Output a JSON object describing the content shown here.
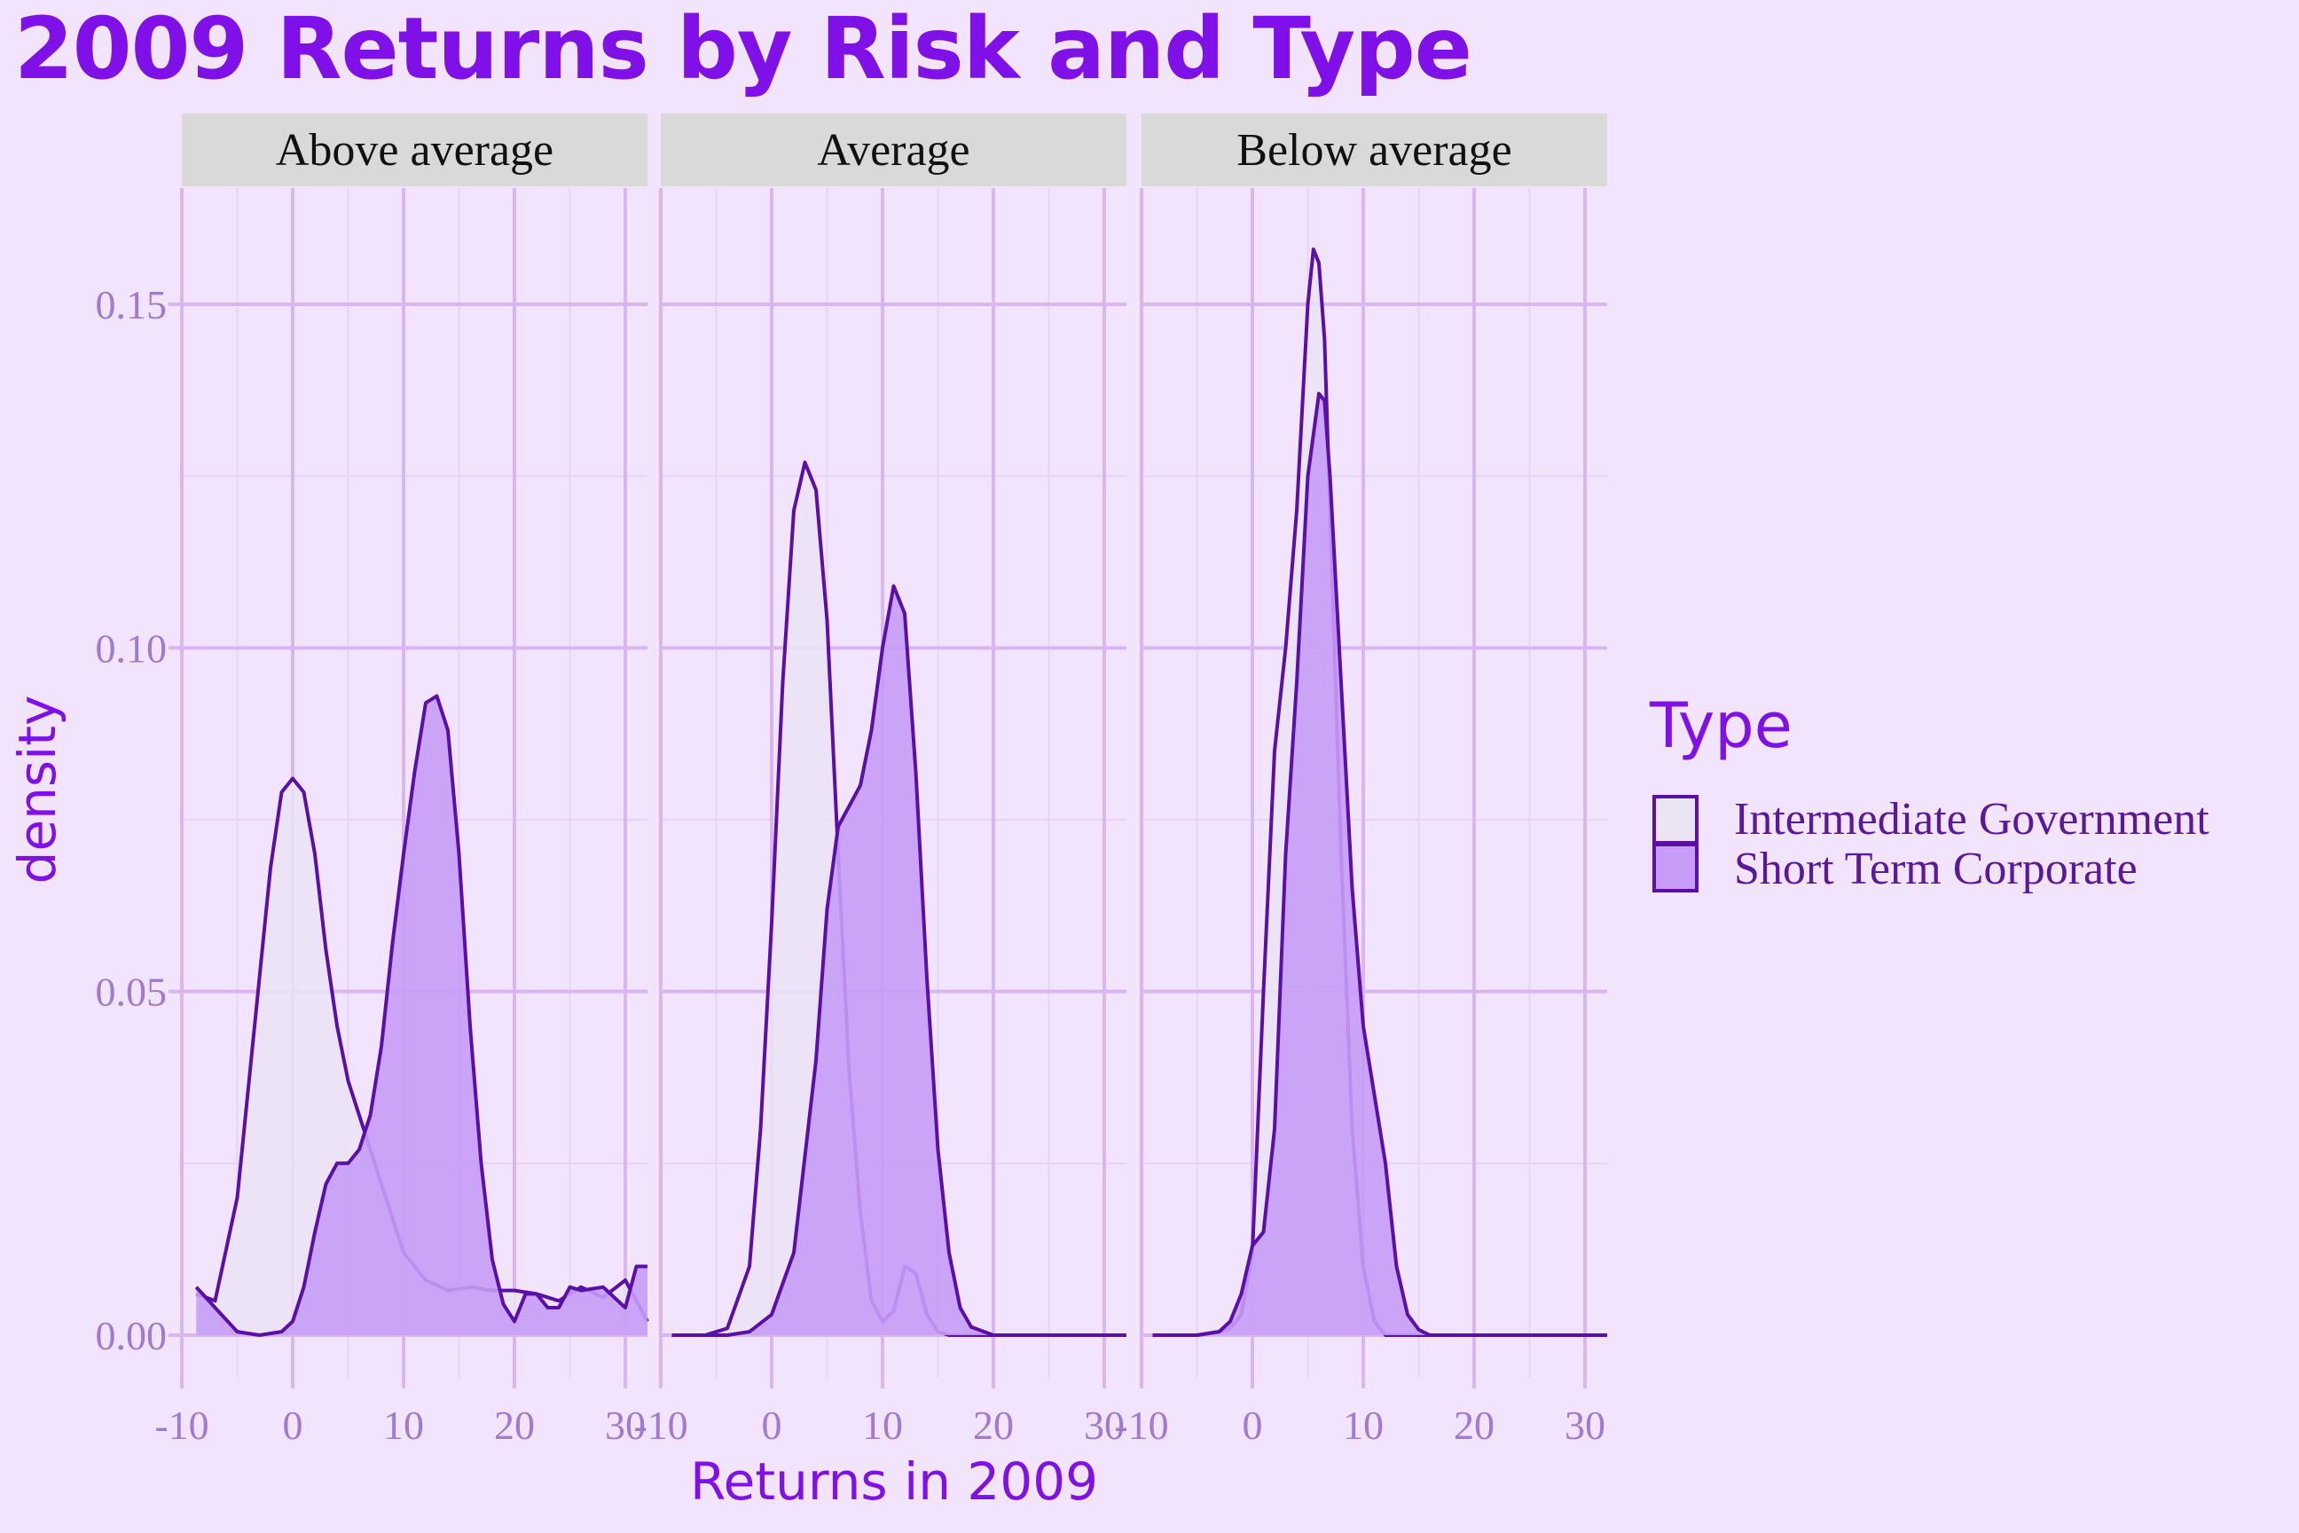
{
  "title": "2009 Returns by Risk and Type",
  "colors": {
    "background": "#f2e4fc",
    "grid_major": "#d8b6f2",
    "grid_minor": "#e7d2f8",
    "strip_background": "#d9d9d9",
    "line": "#5a0fa8",
    "fill_intermediate": "#ebe4f5",
    "fill_short_term": "#c79cf7",
    "title": "#7f10e8",
    "tick_text": "#a07ad0"
  },
  "chart_data": {
    "type": "area",
    "title": "2009 Returns by Risk and Type",
    "xlabel": "Returns in 2009",
    "ylabel": "density",
    "xlim": [
      -10,
      32
    ],
    "ylim": [
      0,
      0.165
    ],
    "x_ticks": [
      -10,
      0,
      10,
      20,
      30
    ],
    "x_tick_labels": [
      "-10",
      "0",
      "10",
      "20",
      "30"
    ],
    "y_ticks": [
      0,
      0.05,
      0.1,
      0.15
    ],
    "y_tick_labels": [
      "0.00",
      "0.05",
      "0.10",
      "0.15"
    ],
    "grid": true,
    "legend": {
      "title": "Type",
      "position": "right",
      "entries": [
        "Intermediate Government",
        "Short Term Corporate"
      ]
    },
    "panels": [
      {
        "label": "Above average",
        "series": [
          {
            "name": "Intermediate Government",
            "x": [
              -8.7,
              -7,
              -5,
              -3,
              -2,
              -1,
              0,
              1,
              2,
              3,
              4,
              5,
              6,
              8,
              10,
              12,
              14,
              16,
              18,
              20,
              22,
              24,
              26,
              28,
              30,
              32
            ],
            "y": [
              0.006,
              0.005,
              0.02,
              0.052,
              0.068,
              0.079,
              0.081,
              0.079,
              0.07,
              0.056,
              0.045,
              0.037,
              0.032,
              0.022,
              0.012,
              0.008,
              0.0065,
              0.007,
              0.0065,
              0.0065,
              0.006,
              0.005,
              0.007,
              0.0055,
              0.008,
              0.002
            ]
          },
          {
            "name": "Short Term Corporate",
            "x": [
              -8.7,
              -7,
              -5,
              -3,
              -1,
              0,
              1,
              2,
              3,
              4,
              5,
              6,
              7,
              8,
              9,
              10,
              11,
              12,
              13,
              14,
              15,
              16,
              17,
              18,
              19,
              20,
              21,
              22,
              23,
              24,
              25,
              26,
              28,
              30,
              31,
              32
            ],
            "y": [
              0.007,
              0.004,
              0.0005,
              0.0,
              0.0005,
              0.002,
              0.007,
              0.015,
              0.022,
              0.025,
              0.025,
              0.027,
              0.032,
              0.042,
              0.057,
              0.07,
              0.082,
              0.092,
              0.093,
              0.088,
              0.07,
              0.045,
              0.025,
              0.011,
              0.0045,
              0.002,
              0.006,
              0.006,
              0.004,
              0.004,
              0.007,
              0.0065,
              0.007,
              0.004,
              0.01,
              0.01
            ]
          }
        ]
      },
      {
        "label": "Average",
        "series": [
          {
            "name": "Intermediate Government",
            "x": [
              -9,
              -6,
              -4,
              -2,
              -1,
              0,
              1,
              2,
              3,
              4,
              5,
              6,
              7,
              8,
              9,
              10,
              11,
              12,
              13,
              14,
              15,
              16,
              20,
              30,
              32
            ],
            "y": [
              0.0,
              0.0,
              0.001,
              0.01,
              0.03,
              0.06,
              0.095,
              0.12,
              0.127,
              0.123,
              0.104,
              0.07,
              0.038,
              0.018,
              0.005,
              0.002,
              0.0035,
              0.01,
              0.009,
              0.003,
              0.0005,
              0.0,
              0.0,
              0.0,
              0.0
            ]
          },
          {
            "name": "Short Term Corporate",
            "x": [
              -9,
              -4,
              -2,
              0,
              2,
              4,
              5,
              6,
              7,
              8,
              9,
              10,
              11,
              12,
              13,
              14,
              15,
              16,
              17,
              18,
              20,
              30,
              32
            ],
            "y": [
              0.0,
              0.0,
              0.0005,
              0.003,
              0.012,
              0.04,
              0.062,
              0.074,
              0.077,
              0.08,
              0.088,
              0.1,
              0.109,
              0.105,
              0.082,
              0.052,
              0.027,
              0.012,
              0.004,
              0.0012,
              0.0,
              0.0,
              0.0
            ]
          }
        ]
      },
      {
        "label": "Below average",
        "series": [
          {
            "name": "Intermediate Government",
            "x": [
              -9,
              -5,
              -3,
              -2,
              -1,
              0,
              1,
              2,
              3,
              4,
              5,
              5.5,
              6,
              6.5,
              7,
              8,
              9,
              10,
              11,
              12,
              14,
              20,
              30,
              32
            ],
            "y": [
              0.0,
              0.0,
              0.0005,
              0.001,
              0.003,
              0.012,
              0.05,
              0.085,
              0.1,
              0.12,
              0.15,
              0.158,
              0.156,
              0.145,
              0.12,
              0.07,
              0.03,
              0.01,
              0.002,
              0.0,
              0.0,
              0.0,
              0.0,
              0.0
            ]
          },
          {
            "name": "Short Term Corporate",
            "x": [
              -9,
              -5,
              -3,
              -2,
              -1,
              0,
              1,
              2,
              3,
              4,
              5,
              6,
              6.5,
              7,
              8,
              9,
              10,
              11,
              12,
              13,
              14,
              15,
              16,
              20,
              30,
              32
            ],
            "y": [
              0.0,
              0.0,
              0.0005,
              0.002,
              0.006,
              0.013,
              0.015,
              0.03,
              0.07,
              0.095,
              0.125,
              0.137,
              0.136,
              0.125,
              0.095,
              0.065,
              0.045,
              0.035,
              0.025,
              0.01,
              0.003,
              0.0008,
              0.0,
              0.0,
              0.0,
              0.0
            ]
          }
        ]
      }
    ]
  }
}
